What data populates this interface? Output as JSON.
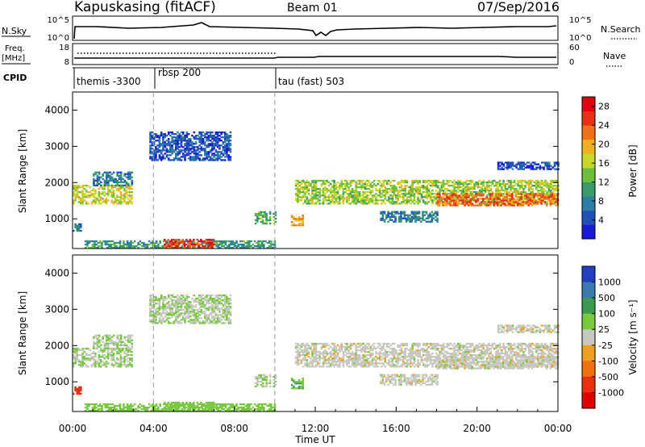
{
  "header": {
    "station": "Kapuskasing (fitACF)",
    "beam": "Beam 01",
    "date": "07/Sep/2016"
  },
  "labels": {
    "nsky": "N.Sky",
    "nsearch": "N.Search",
    "freq_top": "Freq.",
    "freq_unit": "[MHz]",
    "nave": "Nave",
    "cpid": "CPID",
    "x_axis": "Time UT",
    "y_axis": "Slant Range [km]",
    "power_cbar": "Power [dB]",
    "velocity_cbar": "Velocity [m s⁻¹]"
  },
  "noise_ticks_left": [
    "10^5",
    "10^0"
  ],
  "noise_ticks_right": [
    "10^5",
    "10^0"
  ],
  "freq_ticks_left": [
    "18",
    "8"
  ],
  "nave_ticks_right": [
    "60",
    "0"
  ],
  "cpid_segments": [
    {
      "label": "themis -3300",
      "start_hour": 0
    },
    {
      "label": "rbsp 200",
      "start_hour": 4
    },
    {
      "label": "tau (fast) 503",
      "start_hour": 10
    }
  ],
  "x_ticks": [
    "00:00",
    "04:00",
    "08:00",
    "12:00",
    "16:00",
    "20:00",
    "00:00"
  ],
  "y_ticks": [
    "1000",
    "2000",
    "3000",
    "4000"
  ],
  "power_ticks": [
    "4",
    "8",
    "12",
    "16",
    "20",
    "24",
    "28"
  ],
  "velocity_ticks": [
    "1000",
    "500",
    "100",
    "25",
    "-25",
    "-100",
    "-500",
    "-1000"
  ],
  "power_colors": [
    "#1a1ad6",
    "#2050b8",
    "#2e7da5",
    "#3a9b6a",
    "#6cbf3a",
    "#c8d82a",
    "#f0b020",
    "#f07018",
    "#e83018",
    "#e00010"
  ],
  "velocity_colors": [
    "#2040c0",
    "#3a7ab0",
    "#3c9a50",
    "#78c840",
    "#c8c8c0",
    "#f0a020",
    "#f07010",
    "#e83010",
    "#e00000"
  ],
  "chart_data": {
    "type": "heatmap",
    "x_range_hours": [
      0,
      24
    ],
    "slant_range_km": [
      180,
      4500
    ],
    "power_range_db": [
      0,
      30
    ],
    "velocity_range": [
      -1000,
      1000
    ],
    "echo_regions": [
      {
        "name": "themis-band",
        "t": [
          0.0,
          2.9
        ],
        "r": [
          1400,
          1900
        ],
        "power_db": 17,
        "velocity": 20
      },
      {
        "name": "themis-rise",
        "t": [
          1.0,
          2.9
        ],
        "r": [
          1900,
          2300
        ],
        "power_db": 8,
        "velocity": 20
      },
      {
        "name": "themis-low",
        "t": [
          0.0,
          0.4
        ],
        "r": [
          650,
          850
        ],
        "power_db": 8,
        "velocity": -400
      },
      {
        "name": "rbsp-upper",
        "t": [
          3.8,
          7.8
        ],
        "r": [
          2600,
          3400
        ],
        "power_db": 5,
        "velocity": 20
      },
      {
        "name": "rbsp-ground",
        "t": [
          0.5,
          10.0
        ],
        "r": [
          180,
          400
        ],
        "power_db": 10,
        "velocity": 60
      },
      {
        "name": "rbsp-ground-core",
        "t": [
          4.5,
          7.0
        ],
        "r": [
          180,
          420
        ],
        "power_db": 26,
        "velocity": 60
      },
      {
        "name": "mid-patch",
        "t": [
          9.0,
          10.0
        ],
        "r": [
          850,
          1200
        ],
        "power_db": 12,
        "velocity": 20
      },
      {
        "name": "tau-patch",
        "t": [
          10.8,
          11.4
        ],
        "r": [
          800,
          1100
        ],
        "power_db": 20,
        "velocity": 100
      },
      {
        "name": "tau-band",
        "t": [
          11.0,
          24.0
        ],
        "r": [
          1400,
          2050
        ],
        "power_db": 15,
        "velocity": 0
      },
      {
        "name": "tau-band-core",
        "t": [
          18.0,
          24.0
        ],
        "r": [
          1350,
          1700
        ],
        "power_db": 23,
        "velocity": 0
      },
      {
        "name": "tau-mid",
        "t": [
          15.2,
          18.0
        ],
        "r": [
          900,
          1200
        ],
        "power_db": 8,
        "velocity": 0
      },
      {
        "name": "tau-upper",
        "t": [
          21.0,
          24.0
        ],
        "r": [
          2350,
          2550
        ],
        "power_db": 4,
        "velocity": 0
      }
    ],
    "cpid_boundaries_hours": [
      4,
      10
    ]
  }
}
